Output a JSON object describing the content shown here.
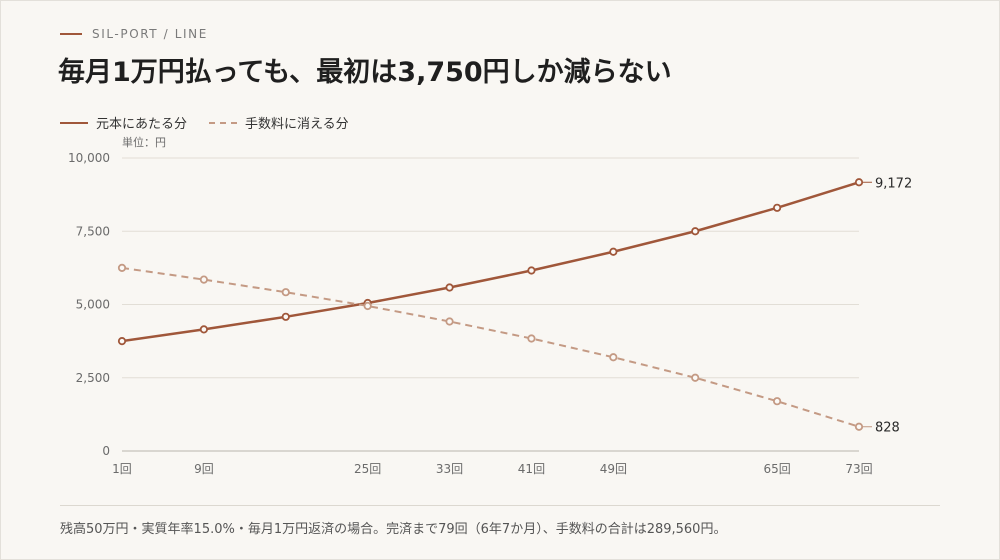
{
  "header": {
    "brand": "SIL-PORT / LINE",
    "title": "毎月1万円払っても、最初は3,750円しか減らない"
  },
  "colors": {
    "principal": "#a0573a",
    "fee": "#c49a84",
    "grid": "#e2ded6",
    "axis": "#8a8a8a"
  },
  "footnote": "残高50万円・実質年率15.0%・毎月1万円返済の場合。完済まで79回（6年7か月）、手数料の合計は289,560円。",
  "chart_data": {
    "type": "line",
    "unit_label": "単位：円",
    "ylim": [
      0,
      10000
    ],
    "yticks": [
      0,
      2500,
      5000,
      7500,
      10000
    ],
    "ytick_labels": [
      "0",
      "2,500",
      "5,000",
      "7,500",
      "10,000"
    ],
    "xlim": [
      1,
      73
    ],
    "xtick_labels": [
      {
        "x": 1,
        "label": "1回"
      },
      {
        "x": 9,
        "label": "9回"
      },
      {
        "x": 25,
        "label": "25回"
      },
      {
        "x": 33,
        "label": "33回"
      },
      {
        "x": 41,
        "label": "41回"
      },
      {
        "x": 49,
        "label": "49回"
      },
      {
        "x": 65,
        "label": "65回"
      },
      {
        "x": 73,
        "label": "73回"
      }
    ],
    "grid": true,
    "legend_position": "top-left",
    "series": [
      {
        "name": "元本にあたる分",
        "style": "solid",
        "x": [
          1,
          9,
          17,
          25,
          33,
          41,
          49,
          57,
          65,
          73
        ],
        "values": [
          3750,
          4150,
          4580,
          5050,
          5580,
          6160,
          6800,
          7500,
          8300,
          9172
        ],
        "end_label": "9,172"
      },
      {
        "name": "手数料に消える分",
        "style": "dashed",
        "x": [
          1,
          9,
          17,
          25,
          33,
          41,
          49,
          57,
          65,
          73
        ],
        "values": [
          6250,
          5850,
          5420,
          4950,
          4420,
          3840,
          3200,
          2500,
          1700,
          828
        ],
        "end_label": "828"
      }
    ]
  }
}
